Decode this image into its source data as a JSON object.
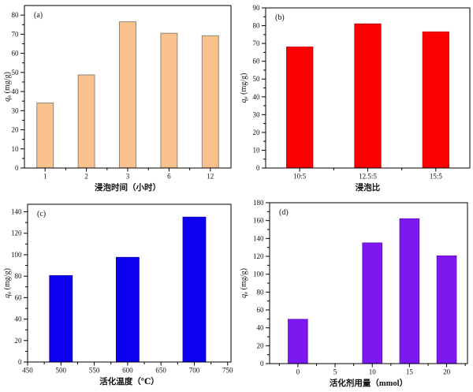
{
  "figure": {
    "background": "#ffffff",
    "axis_color": "#000000",
    "text_color": "#111111"
  },
  "chart_data": [
    {
      "id": "a",
      "type": "bar",
      "panel_label": "(a)",
      "x_type": "category",
      "categories": [
        "1",
        "2",
        "3",
        "6",
        "12"
      ],
      "values": [
        34,
        48.7,
        76.5,
        70.5,
        69.2
      ],
      "xlabel": "浸泡时间（小时）",
      "ylabel": "qe (mg/g)",
      "ylabel_parts": {
        "var": "q",
        "sub": "e",
        "rest": " (mg/g)"
      },
      "ylim": [
        0,
        85
      ],
      "ytick_max": 80,
      "ytick_step": 10,
      "yminor_step": 5,
      "bar_width_frac": 0.4,
      "bar_fill": "#f9c18c",
      "bar_stroke": "#8e867a",
      "grid": false,
      "legend": null
    },
    {
      "id": "b",
      "type": "bar",
      "panel_label": "(b)",
      "x_type": "category",
      "categories": [
        "10:5",
        "12.5:5",
        "15:5"
      ],
      "values": [
        68,
        81,
        76.5
      ],
      "xlabel": "浸泡比",
      "ylabel": "qe (mg/g)",
      "ylabel_parts": {
        "var": "q",
        "sub": "e",
        "rest": " (mg/g)"
      },
      "ylim": [
        0,
        90
      ],
      "ytick_max": 90,
      "ytick_step": 10,
      "yminor_step": 5,
      "bar_width_frac": 0.385,
      "bar_fill": "#fa0000",
      "bar_stroke": "#d40000",
      "grid": false,
      "legend": null
    },
    {
      "id": "c",
      "type": "bar",
      "panel_label": "(c)",
      "x_type": "numeric",
      "x": [
        500,
        600,
        700
      ],
      "values": [
        80.5,
        97.5,
        135
      ],
      "xlabel": "活化温度（℃）",
      "ylabel": "qe (mg/g)",
      "ylabel_parts": {
        "var": "q",
        "sub": "e",
        "rest": " (mg/g)"
      },
      "xlim": [
        450,
        755
      ],
      "xticks": [
        450,
        500,
        550,
        600,
        650,
        700,
        750
      ],
      "xminor_step": 25,
      "ylim": [
        0,
        147
      ],
      "ytick_max": 140,
      "ytick_step": 20,
      "yminor_step": 10,
      "bar_width_units": 34,
      "bar_fill": "#0c00ef",
      "bar_stroke": "#0900c0",
      "grid": false,
      "legend": null
    },
    {
      "id": "d",
      "type": "bar",
      "panel_label": "(d)",
      "x_type": "numeric",
      "x": [
        0,
        10,
        15,
        20
      ],
      "values": [
        49.5,
        135,
        162,
        120.5
      ],
      "xlabel": "活化剂用量（mmol）",
      "ylabel": "qe (mg/g)",
      "ylabel_parts": {
        "var": "q",
        "sub": "e",
        "rest": " (mg/g)"
      },
      "xlim": [
        -3.8,
        22.8
      ],
      "xticks": [
        0,
        5,
        10,
        15,
        20
      ],
      "xminor_step": 2.5,
      "ylim": [
        0,
        180
      ],
      "ytick_max": 180,
      "ytick_step": 20,
      "yminor_step": 10,
      "bar_width_units": 2.6,
      "bar_fill": "#7d18f0",
      "bar_stroke": "#6610cb",
      "grid": false,
      "legend": null
    }
  ]
}
